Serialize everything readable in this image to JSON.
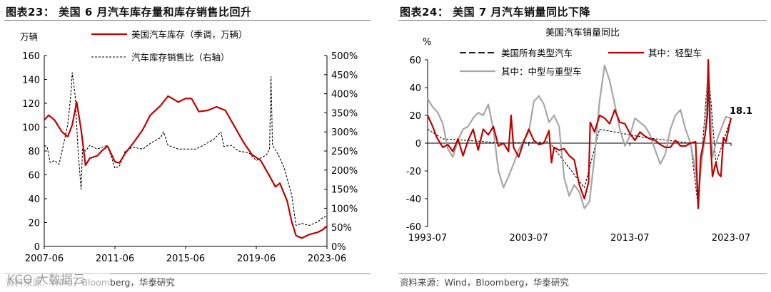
{
  "left": {
    "figure_title": "图表23：  美国 6 月汽车库存量和库存销售比回升",
    "source": "资料来源：Wind，Bloomberg，华泰研究"
  },
  "right": {
    "figure_title": "图表24：  美国 7 月汽车销量同比下降",
    "source": "资料来源：Wind，Bloomberg，华泰研究"
  },
  "watermark_text": "KCO 大数据云",
  "colors": {
    "red": "#c00000",
    "gray": "#a6a6a6",
    "black": "#000000"
  },
  "chart_data": [
    {
      "type": "line",
      "title": "",
      "y_unit_label": "万辆",
      "x_tick_labels": [
        "2007-06",
        "2011-06",
        "2015-06",
        "2019-06",
        "2023-06"
      ],
      "xlim": [
        "2007-06",
        "2023-06"
      ],
      "ylim_left": [
        0,
        160
      ],
      "yticks_left": [
        0,
        20,
        40,
        60,
        80,
        100,
        120,
        140,
        160
      ],
      "ylim_right": [
        0,
        500
      ],
      "yticks_right": [
        "0%",
        "50%",
        "100%",
        "150%",
        "200%",
        "250%",
        "300%",
        "350%",
        "400%",
        "450%",
        "500%"
      ],
      "legend_position": "top",
      "series": [
        {
          "name": "美国汽车库存（季调，万辆）",
          "axis": "left",
          "style": "solid-red",
          "points": [
            [
              "2007-06",
              106
            ],
            [
              "2007-09",
              110
            ],
            [
              "2008-01",
              106
            ],
            [
              "2008-06",
              96
            ],
            [
              "2008-10",
              92
            ],
            [
              "2009-01",
              102
            ],
            [
              "2009-04",
              121
            ],
            [
              "2009-07",
              98
            ],
            [
              "2009-10",
              68
            ],
            [
              "2010-01",
              74
            ],
            [
              "2010-06",
              76
            ],
            [
              "2010-09",
              80
            ],
            [
              "2011-01",
              84
            ],
            [
              "2011-06",
              71
            ],
            [
              "2011-09",
              70
            ],
            [
              "2012-01",
              78
            ],
            [
              "2012-06",
              86
            ],
            [
              "2013-01",
              98
            ],
            [
              "2013-06",
              110
            ],
            [
              "2014-01",
              118
            ],
            [
              "2014-06",
              126
            ],
            [
              "2014-09",
              124
            ],
            [
              "2015-01",
              121
            ],
            [
              "2015-06",
              124
            ],
            [
              "2015-10",
              124
            ],
            [
              "2016-03",
              113
            ],
            [
              "2016-09",
              114
            ],
            [
              "2017-03",
              117
            ],
            [
              "2017-09",
              114
            ],
            [
              "2018-03",
              101
            ],
            [
              "2018-09",
              88
            ],
            [
              "2019-03",
              77
            ],
            [
              "2019-09",
              72
            ],
            [
              "2020-03",
              59
            ],
            [
              "2020-07",
              50
            ],
            [
              "2020-10",
              53
            ],
            [
              "2021-03",
              38
            ],
            [
              "2021-06",
              21
            ],
            [
              "2021-09",
              9
            ],
            [
              "2022-01",
              7
            ],
            [
              "2022-06",
              10
            ],
            [
              "2022-12",
              12
            ],
            [
              "2023-03",
              14
            ],
            [
              "2023-06",
              17
            ]
          ]
        },
        {
          "name": "汽车库存销售比（右轴）",
          "axis": "right",
          "style": "dashed-black",
          "points": [
            [
              "2007-06",
              265
            ],
            [
              "2007-08",
              260
            ],
            [
              "2007-10",
              220
            ],
            [
              "2008-01",
              225
            ],
            [
              "2008-04",
              215
            ],
            [
              "2008-07",
              265
            ],
            [
              "2008-10",
              320
            ],
            [
              "2008-12",
              395
            ],
            [
              "2009-01",
              455
            ],
            [
              "2009-03",
              395
            ],
            [
              "2009-05",
              250
            ],
            [
              "2009-07",
              150
            ],
            [
              "2009-08",
              255
            ],
            [
              "2009-10",
              250
            ],
            [
              "2010-01",
              265
            ],
            [
              "2010-06",
              255
            ],
            [
              "2011-01",
              265
            ],
            [
              "2011-06",
              205
            ],
            [
              "2011-09",
              210
            ],
            [
              "2012-01",
              250
            ],
            [
              "2012-06",
              260
            ],
            [
              "2013-01",
              255
            ],
            [
              "2013-06",
              270
            ],
            [
              "2014-01",
              285
            ],
            [
              "2014-03",
              300
            ],
            [
              "2014-06",
              265
            ],
            [
              "2015-01",
              255
            ],
            [
              "2015-06",
              255
            ],
            [
              "2016-01",
              255
            ],
            [
              "2016-06",
              265
            ],
            [
              "2017-01",
              280
            ],
            [
              "2017-06",
              300
            ],
            [
              "2017-08",
              262
            ],
            [
              "2018-01",
              265
            ],
            [
              "2018-06",
              250
            ],
            [
              "2019-01",
              245
            ],
            [
              "2019-06",
              225
            ],
            [
              "2020-01",
              240
            ],
            [
              "2020-03",
              255
            ],
            [
              "2020-04",
              445
            ],
            [
              "2020-05",
              265
            ],
            [
              "2020-09",
              240
            ],
            [
              "2021-01",
              205
            ],
            [
              "2021-06",
              135
            ],
            [
              "2021-09",
              55
            ],
            [
              "2022-01",
              60
            ],
            [
              "2022-06",
              55
            ],
            [
              "2022-12",
              65
            ],
            [
              "2023-03",
              75
            ],
            [
              "2023-06",
              80
            ]
          ]
        }
      ]
    },
    {
      "type": "line",
      "title": "美国汽车销量同比",
      "y_unit_label": "%",
      "x_tick_labels": [
        "1993-07",
        "2003-07",
        "2013-07",
        "2023-07"
      ],
      "xlim": [
        "1993-07",
        "2023-07"
      ],
      "ylim": [
        -60,
        60
      ],
      "yticks": [
        -60,
        -40,
        -20,
        0,
        20,
        40,
        60
      ],
      "legend_position": "top",
      "end_label": "18.1",
      "series": [
        {
          "name": "美国所有类型汽车",
          "style": "dashed-black",
          "points": [
            [
              "1993-07",
              10
            ],
            [
              "1995-01",
              3
            ],
            [
              "1997-07",
              2
            ],
            [
              "2001-01",
              0
            ],
            [
              "2005-07",
              1
            ],
            [
              "2009-01",
              -32
            ],
            [
              "2010-07",
              10
            ],
            [
              "2015-01",
              4
            ],
            [
              "2019-07",
              0
            ],
            [
              "2020-04",
              -46
            ],
            [
              "2021-04",
              55
            ],
            [
              "2022-01",
              -15
            ],
            [
              "2023-07",
              18.1
            ]
          ]
        },
        {
          "name": "其中：轻型车",
          "style": "solid-red",
          "points": [
            [
              "1993-07",
              20
            ],
            [
              "1994-01",
              12
            ],
            [
              "1994-06",
              4
            ],
            [
              "1995-01",
              -3
            ],
            [
              "1995-07",
              -1
            ],
            [
              "1996-01",
              -6
            ],
            [
              "1996-07",
              3
            ],
            [
              "1997-01",
              -9
            ],
            [
              "1997-07",
              2
            ],
            [
              "1998-01",
              10
            ],
            [
              "1998-07",
              -5
            ],
            [
              "1999-01",
              10
            ],
            [
              "1999-07",
              6
            ],
            [
              "2000-01",
              12
            ],
            [
              "2000-07",
              -2
            ],
            [
              "2001-01",
              0
            ],
            [
              "2001-07",
              -6
            ],
            [
              "2001-10",
              20
            ],
            [
              "2002-01",
              -3
            ],
            [
              "2002-07",
              -10
            ],
            [
              "2003-01",
              1
            ],
            [
              "2003-07",
              10
            ],
            [
              "2004-01",
              2
            ],
            [
              "2004-07",
              -1
            ],
            [
              "2005-01",
              0
            ],
            [
              "2005-07",
              9
            ],
            [
              "2005-10",
              -14
            ],
            [
              "2006-01",
              -3
            ],
            [
              "2006-07",
              -5
            ],
            [
              "2007-01",
              -4
            ],
            [
              "2007-07",
              -9
            ],
            [
              "2008-01",
              -12
            ],
            [
              "2008-07",
              -30
            ],
            [
              "2009-01",
              -40
            ],
            [
              "2009-06",
              -28
            ],
            [
              "2009-08",
              15
            ],
            [
              "2010-01",
              8
            ],
            [
              "2010-07",
              20
            ],
            [
              "2011-01",
              18
            ],
            [
              "2011-07",
              14
            ],
            [
              "2012-01",
              24
            ],
            [
              "2012-07",
              15
            ],
            [
              "2013-01",
              14
            ],
            [
              "2013-07",
              7
            ],
            [
              "2014-01",
              2
            ],
            [
              "2014-07",
              8
            ],
            [
              "2015-01",
              5
            ],
            [
              "2015-07",
              3
            ],
            [
              "2016-01",
              2
            ],
            [
              "2016-07",
              -1
            ],
            [
              "2017-01",
              -3
            ],
            [
              "2017-07",
              -3
            ],
            [
              "2018-01",
              2
            ],
            [
              "2018-07",
              -2
            ],
            [
              "2019-01",
              -2
            ],
            [
              "2019-07",
              0
            ],
            [
              "2020-01",
              1
            ],
            [
              "2020-04",
              -47
            ],
            [
              "2020-07",
              -10
            ],
            [
              "2020-12",
              5
            ],
            [
              "2021-03",
              20
            ],
            [
              "2021-04",
              60
            ],
            [
              "2021-06",
              8
            ],
            [
              "2021-09",
              -24
            ],
            [
              "2022-01",
              -14
            ],
            [
              "2022-04",
              -22
            ],
            [
              "2022-07",
              -24
            ],
            [
              "2022-10",
              4
            ],
            [
              "2023-01",
              1
            ],
            [
              "2023-04",
              10
            ],
            [
              "2023-07",
              18
            ]
          ]
        },
        {
          "name": "其中：中型与重型车",
          "style": "solid-gray",
          "points": [
            [
              "1993-07",
              32
            ],
            [
              "1994-01",
              26
            ],
            [
              "1994-07",
              22
            ],
            [
              "1995-01",
              14
            ],
            [
              "1995-07",
              -4
            ],
            [
              "1996-01",
              -10
            ],
            [
              "1996-07",
              2
            ],
            [
              "1997-01",
              10
            ],
            [
              "1997-07",
              12
            ],
            [
              "1998-01",
              18
            ],
            [
              "1998-07",
              22
            ],
            [
              "1999-01",
              20
            ],
            [
              "1999-07",
              28
            ],
            [
              "2000-01",
              10
            ],
            [
              "2000-07",
              -20
            ],
            [
              "2001-01",
              -32
            ],
            [
              "2001-07",
              -24
            ],
            [
              "2002-01",
              -15
            ],
            [
              "2002-07",
              -5
            ],
            [
              "2003-01",
              2
            ],
            [
              "2003-07",
              8
            ],
            [
              "2004-01",
              30
            ],
            [
              "2004-07",
              34
            ],
            [
              "2005-01",
              28
            ],
            [
              "2005-07",
              15
            ],
            [
              "2006-01",
              20
            ],
            [
              "2006-07",
              12
            ],
            [
              "2007-01",
              -25
            ],
            [
              "2007-07",
              -38
            ],
            [
              "2008-01",
              -30
            ],
            [
              "2008-07",
              -35
            ],
            [
              "2009-01",
              -47
            ],
            [
              "2009-07",
              -42
            ],
            [
              "2010-01",
              -10
            ],
            [
              "2010-07",
              30
            ],
            [
              "2011-01",
              56
            ],
            [
              "2011-07",
              45
            ],
            [
              "2012-01",
              28
            ],
            [
              "2012-07",
              10
            ],
            [
              "2013-01",
              -2
            ],
            [
              "2013-07",
              5
            ],
            [
              "2014-01",
              18
            ],
            [
              "2014-07",
              15
            ],
            [
              "2015-01",
              12
            ],
            [
              "2015-07",
              6
            ],
            [
              "2016-01",
              -5
            ],
            [
              "2016-07",
              -15
            ],
            [
              "2017-01",
              -8
            ],
            [
              "2017-07",
              10
            ],
            [
              "2018-01",
              20
            ],
            [
              "2018-07",
              24
            ],
            [
              "2019-01",
              10
            ],
            [
              "2019-07",
              0
            ],
            [
              "2020-01",
              -20
            ],
            [
              "2020-04",
              -40
            ],
            [
              "2020-07",
              -20
            ],
            [
              "2021-01",
              10
            ],
            [
              "2021-04",
              58
            ],
            [
              "2021-09",
              -10
            ],
            [
              "2022-01",
              0
            ],
            [
              "2022-07",
              10
            ],
            [
              "2023-01",
              19
            ],
            [
              "2023-07",
              18
            ]
          ]
        }
      ]
    }
  ]
}
